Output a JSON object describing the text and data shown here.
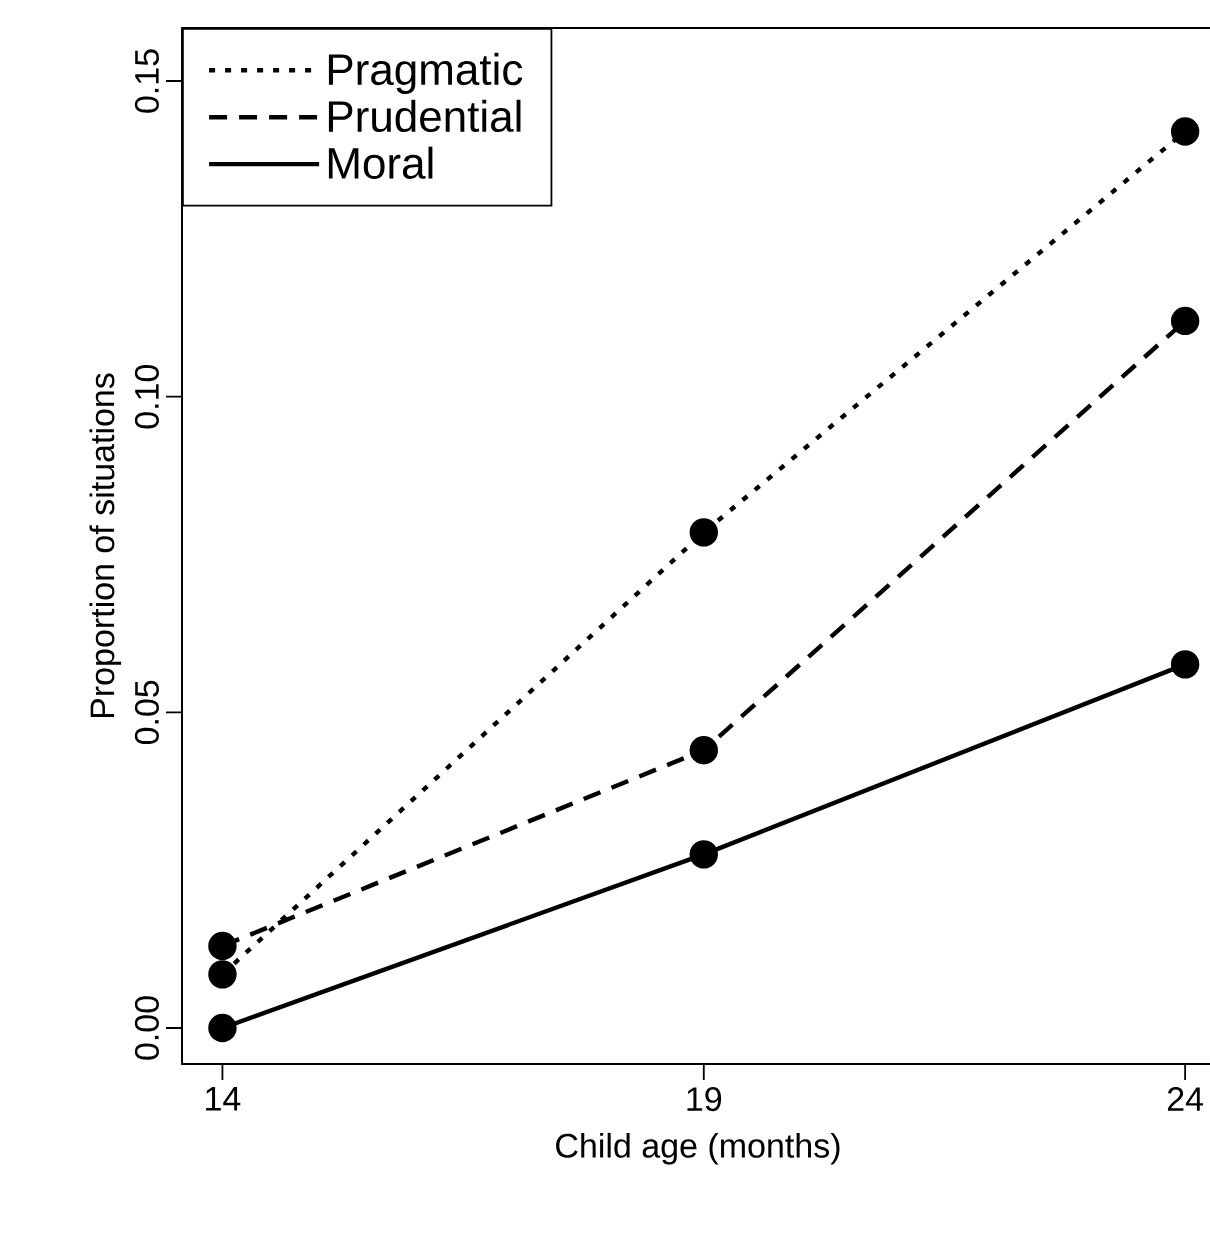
{
  "chart_data": {
    "type": "line",
    "xlabel": "Child age (months)",
    "ylabel": "Proportion of situations",
    "x": [
      14,
      19,
      24
    ],
    "xlim": [
      13.58,
      24.3
    ],
    "xticks": [
      14,
      19,
      24
    ],
    "ylim": [
      -0.0057,
      0.1584
    ],
    "yticks": [
      {
        "value": 0,
        "label": "0.00"
      },
      {
        "value": 0.05,
        "label": "0.05"
      },
      {
        "value": 0.1,
        "label": "0.10"
      },
      {
        "value": 0.15,
        "label": "0.15"
      }
    ],
    "marker": "circle",
    "legend": "top left",
    "series": [
      {
        "name": "Pragmatic",
        "color": "#000000",
        "line_style": "dotted",
        "values": [
          0.0085,
          0.0785,
          0.142
        ]
      },
      {
        "name": "Prudential",
        "color": "#000000",
        "line_style": "dashed",
        "values": [
          0.013,
          0.044,
          0.112
        ]
      },
      {
        "name": "Moral",
        "color": "#000000",
        "line_style": "solid",
        "values": [
          0,
          0.0275,
          0.0576
        ]
      }
    ]
  }
}
